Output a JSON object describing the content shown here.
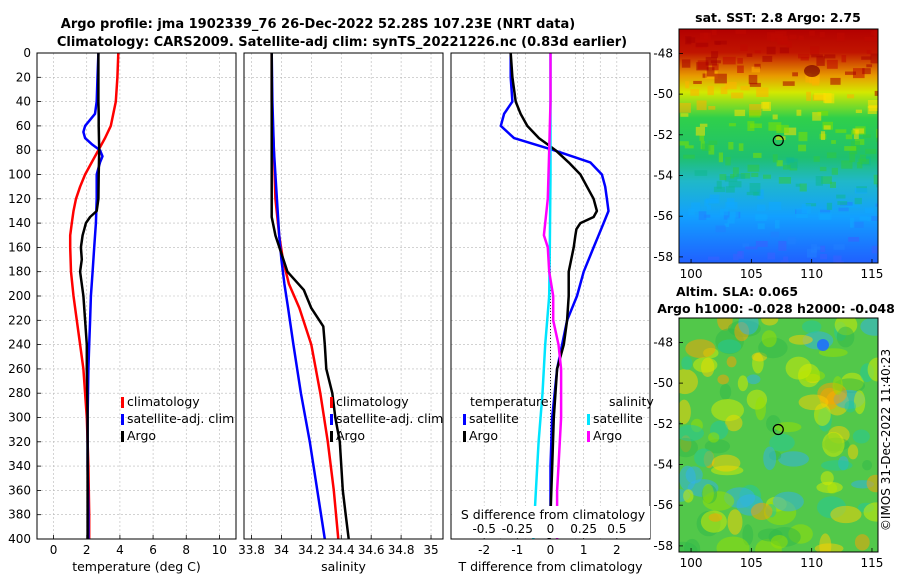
{
  "title": {
    "line1": "Argo profile: jma 1902339_76 26-Dec-2022 52.28S 107.23E (NRT data)",
    "line2": "Climatology: CARS2009. Satellite-adj clim: synTS_20221226.nc (0.83d earlier)"
  },
  "copyright": "©IMOS 31-Dec-2022 11:40:23",
  "colors": {
    "climatology": "#ff0000",
    "satellite": "#0000ff",
    "argo": "#000000",
    "sat_salinity": "#00e5ff",
    "argo_salinity": "#ff00ff"
  },
  "chart_data": [
    {
      "type": "line",
      "id": "temperature",
      "xlabel": "temperature (deg C)",
      "ylabel": "",
      "xlim": [
        -1,
        11
      ],
      "ylim": [
        400,
        0
      ],
      "xticks": [
        "0",
        "2",
        "4",
        "6",
        "8",
        "10"
      ],
      "yticks": [
        "0",
        "20",
        "40",
        "60",
        "80",
        "100",
        "120",
        "140",
        "160",
        "180",
        "200",
        "220",
        "240",
        "260",
        "280",
        "300",
        "320",
        "340",
        "360",
        "380",
        "400"
      ],
      "grid": true,
      "legend": [
        "climatology",
        "satellite-adj. clim",
        "Argo"
      ],
      "series": [
        {
          "name": "climatology",
          "depth": [
            0,
            20,
            40,
            60,
            70,
            80,
            90,
            100,
            110,
            120,
            130,
            140,
            150,
            160,
            180,
            200,
            220,
            240,
            260,
            300,
            340,
            380,
            400
          ],
          "values": [
            3.9,
            3.85,
            3.75,
            3.45,
            3.1,
            2.7,
            2.3,
            1.9,
            1.6,
            1.35,
            1.2,
            1.1,
            1.0,
            1.0,
            1.05,
            1.2,
            1.4,
            1.6,
            1.8,
            2.0,
            2.1,
            2.15,
            2.15
          ]
        },
        {
          "name": "satellite-adj. clim",
          "depth": [
            0,
            20,
            40,
            50,
            60,
            65,
            70,
            75,
            80,
            85,
            90,
            100,
            120,
            140,
            160,
            180,
            200,
            220,
            240,
            260,
            300,
            340,
            380,
            400
          ],
          "values": [
            2.7,
            2.65,
            2.6,
            2.5,
            1.9,
            1.8,
            1.9,
            2.3,
            2.8,
            2.95,
            2.8,
            2.6,
            2.6,
            2.55,
            2.45,
            2.35,
            2.25,
            2.2,
            2.15,
            2.1,
            2.05,
            2.05,
            2.1,
            2.1
          ]
        },
        {
          "name": "Argo",
          "depth": [
            0,
            10,
            20,
            30,
            40,
            50,
            60,
            80,
            100,
            120,
            130,
            135,
            140,
            145,
            150,
            160,
            170,
            180,
            200,
            220,
            240,
            260,
            300,
            340,
            380,
            400
          ],
          "values": [
            2.7,
            2.7,
            2.7,
            2.7,
            2.7,
            2.72,
            2.72,
            2.75,
            2.72,
            2.7,
            2.6,
            2.2,
            1.95,
            1.85,
            1.75,
            1.65,
            1.7,
            1.6,
            1.8,
            1.9,
            2.0,
            2.0,
            2.05,
            2.05,
            2.05,
            2.05
          ]
        }
      ]
    },
    {
      "type": "line",
      "id": "salinity",
      "xlabel": "salinity",
      "xlim": [
        33.75,
        35.08
      ],
      "ylim": [
        400,
        0
      ],
      "xticks": [
        "33.8",
        "34",
        "34.2",
        "34.4",
        "34.6",
        "34.8",
        "35"
      ],
      "grid": true,
      "legend": [
        "climatology",
        "satellite-adj. clim",
        "Argo"
      ],
      "series": [
        {
          "name": "climatology",
          "depth": [
            0,
            40,
            80,
            120,
            150,
            170,
            190,
            210,
            240,
            280,
            320,
            360,
            400
          ],
          "values": [
            33.935,
            33.935,
            33.95,
            33.96,
            33.985,
            34.01,
            34.05,
            34.12,
            34.2,
            34.26,
            34.31,
            34.35,
            34.38
          ]
        },
        {
          "name": "satellite-adj. clim",
          "depth": [
            0,
            40,
            80,
            120,
            150,
            170,
            190,
            210,
            240,
            280,
            320,
            360,
            400
          ],
          "values": [
            33.935,
            33.94,
            33.95,
            33.97,
            33.985,
            34.0,
            34.02,
            34.045,
            34.08,
            34.13,
            34.19,
            34.24,
            34.29
          ]
        },
        {
          "name": "Argo",
          "depth": [
            0,
            60,
            100,
            120,
            135,
            150,
            165,
            180,
            195,
            210,
            225,
            240,
            260,
            280,
            300,
            320,
            340,
            360,
            380,
            400
          ],
          "values": [
            33.935,
            33.935,
            33.935,
            33.935,
            33.935,
            33.96,
            34.0,
            34.04,
            34.15,
            34.2,
            34.28,
            34.29,
            34.3,
            34.34,
            34.36,
            34.39,
            34.4,
            34.41,
            34.43,
            34.45
          ]
        }
      ]
    },
    {
      "type": "line",
      "id": "difference",
      "xlabel": "T difference from climatology",
      "top_axis_label": "S difference from climatology",
      "xlim": [
        -3,
        3
      ],
      "ylim": [
        400,
        0
      ],
      "xticks": [
        "-2",
        "-1",
        "0",
        "1",
        "2"
      ],
      "sticks": [
        "-0.5",
        "-0.25",
        "0",
        "0.25",
        "0.5"
      ],
      "grid": true,
      "legend_temperature_title": "temperature",
      "legend_salinity_title": "salinity",
      "legend": [
        "satellite",
        "Argo",
        "satellite",
        "Argo"
      ],
      "series": [
        {
          "name": "temperature satellite",
          "depth": [
            0,
            20,
            40,
            50,
            60,
            70,
            80,
            90,
            100,
            110,
            120,
            130,
            140,
            150,
            160,
            180,
            200,
            220,
            240,
            260,
            300,
            340,
            380,
            400
          ],
          "values": [
            -1.2,
            -1.2,
            -1.15,
            -1.4,
            -1.5,
            -1.1,
            0.1,
            1.2,
            1.55,
            1.65,
            1.7,
            1.75,
            1.6,
            1.45,
            1.3,
            1.0,
            0.8,
            0.5,
            0.35,
            0.2,
            0.05,
            0,
            0,
            -0.05
          ]
        },
        {
          "name": "temperature Argo",
          "depth": [
            0,
            20,
            40,
            50,
            60,
            70,
            75,
            80,
            90,
            100,
            110,
            120,
            130,
            135,
            140,
            145,
            150,
            160,
            180,
            200,
            220,
            240,
            260,
            300,
            340,
            380,
            400
          ],
          "values": [
            -1.2,
            -1.15,
            -1.05,
            -0.9,
            -0.7,
            -0.35,
            -0.1,
            0.15,
            0.55,
            0.9,
            1.1,
            1.3,
            1.4,
            1.3,
            0.9,
            0.78,
            0.75,
            0.7,
            0.55,
            0.55,
            0.5,
            0.4,
            0.2,
            0.1,
            0.05,
            0.0,
            -0.05
          ]
        },
        {
          "name": "salinity satellite",
          "depth": [
            0,
            100,
            160,
            200,
            240,
            280,
            320,
            360,
            400
          ],
          "values": [
            0.0,
            0.0,
            -0.005,
            -0.01,
            -0.04,
            -0.06,
            -0.09,
            -0.11,
            -0.13
          ]
        },
        {
          "name": "salinity Argo",
          "depth": [
            0,
            40,
            80,
            120,
            140,
            150,
            160,
            180,
            200,
            220,
            240,
            260,
            280,
            300,
            320,
            340,
            360,
            380,
            400
          ],
          "values": [
            0.0,
            0.0,
            -0.01,
            -0.02,
            -0.04,
            -0.05,
            -0.02,
            -0.01,
            0.02,
            0.02,
            0.06,
            0.08,
            0.08,
            0.08,
            0.07,
            0.06,
            0.05,
            0.05,
            0.05
          ]
        }
      ]
    },
    {
      "type": "heatmap",
      "id": "sst-map",
      "title": "sat. SST: 2.8 Argo: 2.75",
      "xticks": [
        "100",
        "105",
        "110",
        "115"
      ],
      "yticks": [
        "-48",
        "-50",
        "-52",
        "-54",
        "-56",
        "-58"
      ],
      "xlim": [
        99,
        115.5
      ],
      "ylim": [
        -58.3,
        -46.8
      ],
      "marker": {
        "lon": 107.23,
        "lat": -52.28
      }
    },
    {
      "type": "heatmap",
      "id": "sla-map",
      "title": "Altim. SLA: 0.065",
      "subtitle": "Argo h1000: -0.028 h2000: -0.048",
      "xticks": [
        "100",
        "105",
        "110",
        "115"
      ],
      "yticks": [
        "-48",
        "-50",
        "-52",
        "-54",
        "-56",
        "-58"
      ],
      "xlim": [
        99,
        115.5
      ],
      "ylim": [
        -58.3,
        -46.8
      ],
      "marker": {
        "lon": 107.23,
        "lat": -52.28
      }
    }
  ]
}
